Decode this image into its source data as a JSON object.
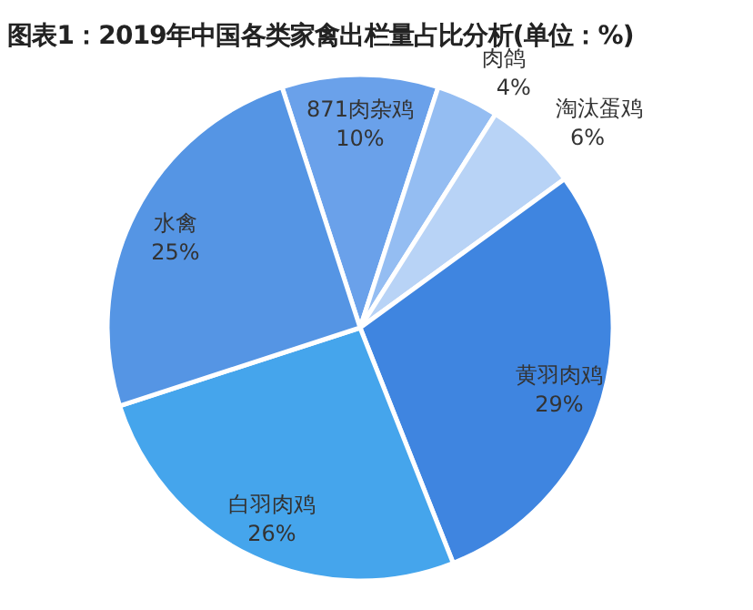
{
  "chart_data": {
    "type": "pie",
    "title": "图表1：2019年中国各类家禽出栏量占比分析(单位：%)",
    "categories": [
      "871肉杂鸡",
      "肉鸽",
      "淘汰蛋鸡",
      "黄羽肉鸡",
      "白羽肉鸡",
      "水禽"
    ],
    "values": [
      10,
      4,
      6,
      29,
      26,
      25
    ],
    "value_labels": [
      "10%",
      "4%",
      "6%",
      "29%",
      "26%",
      "25%"
    ],
    "colors": [
      "#6aa1ea",
      "#94bdf2",
      "#b8d3f6",
      "#3f85e0",
      "#45a5ec",
      "#5595e4"
    ]
  }
}
